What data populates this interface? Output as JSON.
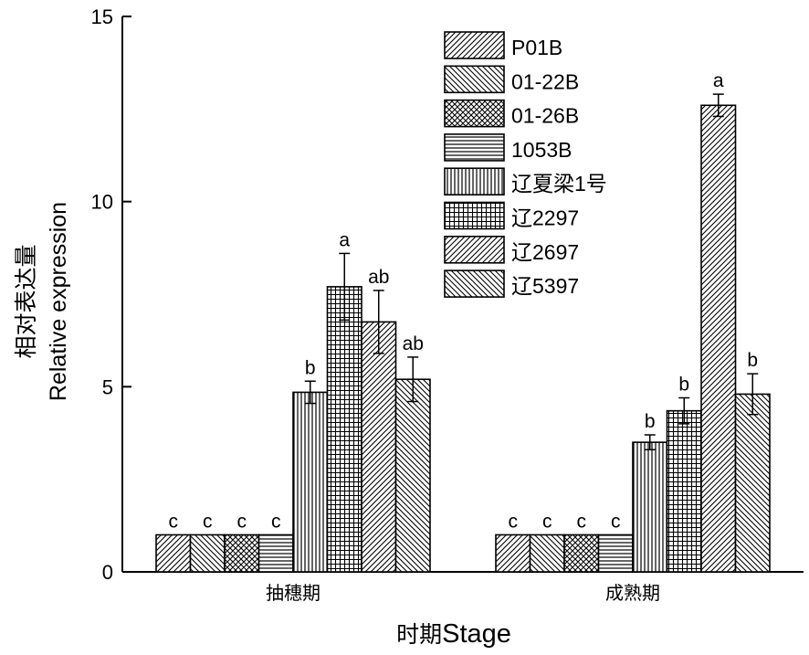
{
  "chart_data": {
    "type": "bar",
    "categories": [
      "抽穗期",
      "成熟期"
    ],
    "series": [
      {
        "name": "P01B",
        "pattern": "fwd-diag",
        "values": [
          1.0,
          1.0
        ],
        "errors": [
          0,
          0
        ],
        "sig": [
          "c",
          "c"
        ]
      },
      {
        "name": "01-22B",
        "pattern": "back-diag",
        "values": [
          1.0,
          1.0
        ],
        "errors": [
          0,
          0
        ],
        "sig": [
          "c",
          "c"
        ]
      },
      {
        "name": "01-26B",
        "pattern": "crosshatch",
        "values": [
          1.0,
          1.0
        ],
        "errors": [
          0,
          0
        ],
        "sig": [
          "c",
          "c"
        ]
      },
      {
        "name": "1053B",
        "pattern": "horizontal",
        "values": [
          1.0,
          1.0
        ],
        "errors": [
          0,
          0
        ],
        "sig": [
          "c",
          "c"
        ]
      },
      {
        "name": "辽夏梁1号",
        "pattern": "vertical",
        "values": [
          4.85,
          3.5
        ],
        "errors": [
          0.3,
          0.2
        ],
        "sig": [
          "b",
          "b"
        ]
      },
      {
        "name": "辽2297",
        "pattern": "grid",
        "values": [
          7.7,
          4.35
        ],
        "errors": [
          0.9,
          0.35
        ],
        "sig": [
          "a",
          "b"
        ]
      },
      {
        "name": "辽2697",
        "pattern": "fwd-diag",
        "values": [
          6.75,
          12.6
        ],
        "errors": [
          0.85,
          0.3
        ],
        "sig": [
          "ab",
          "a"
        ]
      },
      {
        "name": "辽5397",
        "pattern": "back-diag",
        "values": [
          5.2,
          4.8
        ],
        "errors": [
          0.6,
          0.55
        ],
        "sig": [
          "ab",
          "b"
        ]
      }
    ],
    "ylabel_cn": "相对表达量",
    "ylabel": "Relative expression",
    "xlabel_cn": "时期",
    "xlabel": "Stage",
    "ylim": [
      0,
      15
    ],
    "yticks": [
      0,
      5,
      10,
      15
    ],
    "legend_position": "top-right",
    "grid": false
  }
}
